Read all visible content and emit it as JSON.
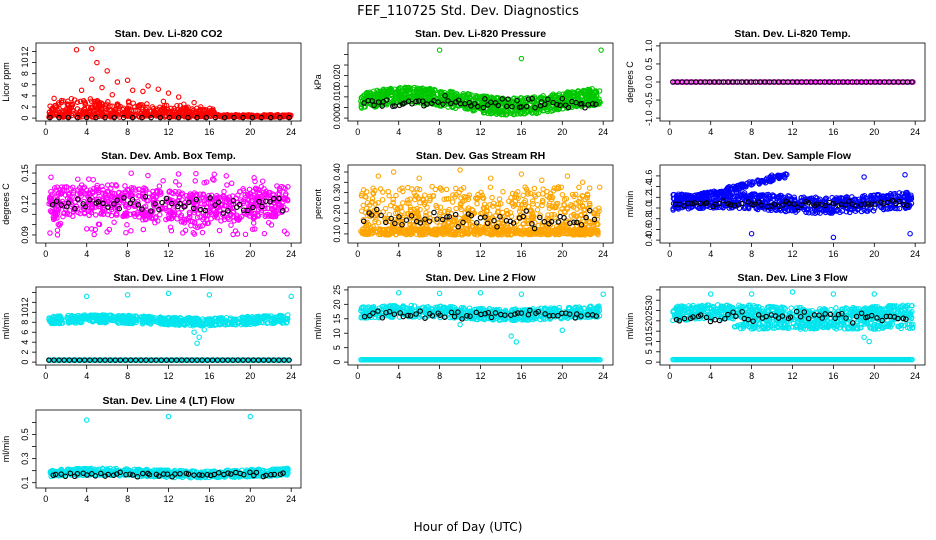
{
  "figure": {
    "title": "FEF_110725  Std. Dev. Diagnostics",
    "xlabel": "Hour of Day (UTC)"
  },
  "chart_data": [
    {
      "id": "co2",
      "type": "scatter",
      "title": "Stan. Dev. Li-820 CO2",
      "ylabel": "Licor ppm",
      "xlim": [
        0,
        24
      ],
      "ylim": [
        0,
        13
      ],
      "xticks": [
        0,
        4,
        8,
        12,
        16,
        20,
        24
      ],
      "yticks": [
        0,
        2,
        4,
        6,
        8,
        10,
        12
      ],
      "ytick_labels": [
        "0",
        "2",
        "4",
        "6",
        "8",
        "10",
        "12"
      ],
      "color": "#ff0000",
      "series": [
        {
          "role": "cloud",
          "kind": "decay",
          "base": 0.15,
          "spread": 2.0,
          "x_range": [
            0.3,
            16.5
          ],
          "n": 480
        },
        {
          "role": "cloud",
          "kind": "flat",
          "base": 0.2,
          "spread": 0.4,
          "x_range": [
            16.5,
            24
          ],
          "n": 160
        },
        {
          "role": "outliers",
          "points": [
            [
              4.5,
              12.5
            ],
            [
              3,
              12.3
            ],
            [
              6,
              8.5
            ],
            [
              5,
              10
            ],
            [
              4.5,
              7
            ],
            [
              7,
              6.5
            ],
            [
              8,
              6.8
            ],
            [
              5.5,
              5.5
            ],
            [
              10,
              5.8
            ],
            [
              11,
              5.2
            ],
            [
              9.5,
              4.8
            ],
            [
              12,
              4.5
            ],
            [
              13,
              3.8
            ],
            [
              6.5,
              4.2
            ],
            [
              3.5,
              5
            ],
            [
              2.5,
              3.5
            ],
            [
              8.5,
              5
            ],
            [
              11.5,
              3
            ],
            [
              13.5,
              2.5
            ],
            [
              14.5,
              2.8
            ]
          ]
        },
        {
          "role": "baseline",
          "color": "#000000",
          "y": 0.1,
          "step": 0.9
        }
      ]
    },
    {
      "id": "pressure",
      "type": "scatter",
      "title": "Stan. Dev. Li-820 Pressure",
      "ylabel": "kPa",
      "xlim": [
        0,
        24
      ],
      "ylim": [
        0,
        0.034
      ],
      "xticks": [
        0,
        4,
        8,
        12,
        16,
        20,
        24
      ],
      "yticks": [
        0,
        0.005,
        0.01,
        0.015,
        0.02,
        0.025,
        0.03
      ],
      "ytick_labels": [
        "0.000",
        "",
        "0.010",
        "",
        "0.020",
        "",
        ""
      ],
      "color": "#00c800",
      "series": [
        {
          "role": "band",
          "lower": 0.004,
          "upper": 0.012,
          "wave": 0.0025,
          "n": 900
        },
        {
          "role": "outliers",
          "points": [
            [
              8,
              0.032
            ],
            [
              16,
              0.028
            ],
            [
              23.8,
              0.032
            ]
          ]
        },
        {
          "role": "black",
          "color": "#000000",
          "center": 0.007,
          "spread": 0.006,
          "n": 70
        }
      ]
    },
    {
      "id": "temp",
      "type": "scatter",
      "title": "Stan. Dev. Li-820 Temp.",
      "ylabel": "degrees C",
      "xlim": [
        0,
        24
      ],
      "ylim": [
        -1,
        1
      ],
      "xticks": [
        0,
        4,
        8,
        12,
        16,
        20,
        24
      ],
      "yticks": [
        -1,
        -0.5,
        0,
        0.5,
        1
      ],
      "ytick_labels": [
        "-1.0",
        "-0.5",
        "0.0",
        "0.5",
        "1.0"
      ],
      "color": "#ff00ff",
      "series": [
        {
          "role": "line",
          "y": 0.0,
          "x_range": [
            0.3,
            23.8
          ],
          "n": 120
        },
        {
          "role": "black",
          "color": "#000000",
          "y": 0.0,
          "step": 0.45
        }
      ]
    },
    {
      "id": "ambtemp",
      "type": "scatter",
      "title": "Stan. Dev. Amb. Box Temp.",
      "ylabel": "degrees C",
      "xlim": [
        0,
        24
      ],
      "ylim": [
        0.085,
        0.155
      ],
      "xticks": [
        0,
        4,
        8,
        12,
        16,
        20,
        24
      ],
      "yticks": [
        0.09,
        0.1,
        0.11,
        0.12,
        0.13,
        0.14,
        0.15
      ],
      "ytick_labels": [
        "0.09",
        "",
        "",
        "0.12",
        "",
        "",
        "0.15"
      ],
      "color": "#ff00ff",
      "series": [
        {
          "role": "band",
          "lower": 0.105,
          "upper": 0.135,
          "wave": 0.004,
          "n": 650
        },
        {
          "role": "scatter_wide",
          "lower": 0.09,
          "upper": 0.15,
          "n": 120
        },
        {
          "role": "black",
          "color": "#000000",
          "center": 0.12,
          "spread": 0.02,
          "n": 55
        }
      ]
    },
    {
      "id": "rh",
      "type": "scatter",
      "title": "Stan. Dev. Gas Stream RH",
      "ylabel": "percent",
      "xlim": [
        0,
        24
      ],
      "ylim": [
        0.07,
        0.42
      ],
      "xticks": [
        0,
        4,
        8,
        12,
        16,
        20,
        24
      ],
      "yticks": [
        0.1,
        0.15,
        0.2,
        0.25,
        0.3,
        0.35,
        0.4
      ],
      "ytick_labels": [
        "0.10",
        "",
        "0.20",
        "",
        "0.30",
        "",
        "0.40"
      ],
      "color": "#ffa500",
      "series": [
        {
          "role": "band",
          "lower": 0.095,
          "upper": 0.125,
          "wave": 0.0,
          "n": 500
        },
        {
          "role": "scatter_wide",
          "lower": 0.13,
          "upper": 0.33,
          "n": 520
        },
        {
          "role": "outliers",
          "points": [
            [
              2,
              0.38
            ],
            [
              3.5,
              0.4
            ],
            [
              6,
              0.37
            ],
            [
              10,
              0.41
            ],
            [
              13,
              0.37
            ],
            [
              16,
              0.39
            ],
            [
              18,
              0.36
            ],
            [
              20.5,
              0.38
            ],
            [
              22,
              0.35
            ]
          ]
        },
        {
          "role": "black",
          "color": "#000000",
          "center": 0.17,
          "spread": 0.08,
          "n": 55
        }
      ]
    },
    {
      "id": "sampleflow",
      "type": "scatter",
      "title": "Stan. Dev. Sample Flow",
      "ylabel": "ml/min",
      "xlim": [
        0,
        24
      ],
      "ylim": [
        0.4,
        1.75
      ],
      "xticks": [
        0,
        4,
        8,
        12,
        16,
        20,
        24
      ],
      "yticks": [
        0.4,
        0.6,
        0.8,
        1.0,
        1.2,
        1.4,
        1.6
      ],
      "ytick_labels": [
        "0.4",
        "0.6",
        "0.8",
        "1.0",
        "1.2",
        "1.4",
        "1.6"
      ],
      "color": "#0000ff",
      "series": [
        {
          "role": "band",
          "lower": 0.95,
          "upper": 1.25,
          "wave": 0.05,
          "n": 700
        },
        {
          "role": "trend",
          "start": [
            0.5,
            1.1
          ],
          "end": [
            11.5,
            1.62
          ],
          "spread": 0.08,
          "n": 160
        },
        {
          "role": "outliers",
          "points": [
            [
              8,
              0.52
            ],
            [
              16,
              0.45
            ],
            [
              23.5,
              0.52
            ],
            [
              19,
              1.58
            ],
            [
              23,
              1.62
            ]
          ]
        },
        {
          "role": "black",
          "color": "#000000",
          "center": 1.08,
          "spread": 0.12,
          "n": 60
        }
      ]
    },
    {
      "id": "line1",
      "type": "scatter",
      "title": "Stan. Dev. Line 1 Flow",
      "ylabel": "ml/min",
      "xlim": [
        0,
        24
      ],
      "ylim": [
        0,
        14.5
      ],
      "xticks": [
        0,
        4,
        8,
        12,
        16,
        20,
        24
      ],
      "yticks": [
        0,
        2,
        4,
        6,
        8,
        10,
        12,
        14
      ],
      "ytick_labels": [
        "0",
        "2",
        "4",
        "6",
        "8",
        "10",
        "12",
        ""
      ],
      "color": "#00e5ee",
      "series": [
        {
          "role": "band",
          "lower": 7.6,
          "upper": 9.2,
          "wave": 0.3,
          "n": 650
        },
        {
          "role": "outliers",
          "points": [
            [
              4,
              13.2
            ],
            [
              8,
              13.5
            ],
            [
              12,
              13.8
            ],
            [
              16,
              13.5
            ],
            [
              24,
              13.2
            ],
            [
              14.5,
              6
            ],
            [
              15,
              5
            ],
            [
              14.8,
              3.8
            ],
            [
              15.5,
              6.5
            ]
          ]
        },
        {
          "role": "baseline_cyan",
          "y": 0.4,
          "n": 200
        },
        {
          "role": "black",
          "color": "#000000",
          "y": 0.4,
          "step": 0.5
        }
      ]
    },
    {
      "id": "line2",
      "type": "scatter",
      "title": "Stan. Dev. Line 2 Flow",
      "ylabel": "ml/min",
      "xlim": [
        0,
        24
      ],
      "ylim": [
        0,
        25
      ],
      "xticks": [
        0,
        4,
        8,
        12,
        16,
        20,
        24
      ],
      "yticks": [
        0,
        5,
        10,
        15,
        20,
        25
      ],
      "ytick_labels": [
        "0",
        "5",
        "10",
        "15",
        "20",
        "25"
      ],
      "color": "#00e5ee",
      "series": [
        {
          "role": "band",
          "lower": 15,
          "upper": 19,
          "wave": 0.6,
          "n": 650
        },
        {
          "role": "outliers",
          "points": [
            [
              4,
              24
            ],
            [
              8,
              23.8
            ],
            [
              12,
              24
            ],
            [
              16,
              23.5
            ],
            [
              24,
              23.5
            ],
            [
              15,
              9
            ],
            [
              15.5,
              7
            ],
            [
              20,
              11
            ],
            [
              10,
              13
            ]
          ]
        },
        {
          "role": "baseline_cyan",
          "y": 0.8,
          "n": 200
        },
        {
          "role": "black",
          "color": "#000000",
          "center": 16.5,
          "spread": 3,
          "n": 55
        }
      ]
    },
    {
      "id": "line3",
      "type": "scatter",
      "title": "Stan. Dev. Line 3 Flow",
      "ylabel": "ml/min",
      "xlim": [
        0,
        24
      ],
      "ylim": [
        0,
        35
      ],
      "xticks": [
        0,
        4,
        8,
        12,
        16,
        20,
        24
      ],
      "yticks": [
        0,
        5,
        10,
        15,
        20,
        25,
        30,
        35
      ],
      "ytick_labels": [
        "0",
        "5",
        "10",
        "15",
        "20",
        "25",
        "30",
        ""
      ],
      "color": "#00e5ee",
      "series": [
        {
          "role": "band",
          "lower": 20,
          "upper": 27,
          "wave": 0.8,
          "n": 650
        },
        {
          "role": "band2",
          "lower": 16,
          "upper": 19,
          "x_range": [
            6,
            24
          ],
          "n": 200
        },
        {
          "role": "outliers",
          "points": [
            [
              4,
              33
            ],
            [
              8,
              33
            ],
            [
              12,
              34
            ],
            [
              16,
              33
            ],
            [
              20,
              33
            ],
            [
              19,
              12
            ],
            [
              19.5,
              10
            ]
          ]
        },
        {
          "role": "baseline_cyan",
          "y": 1.2,
          "n": 200
        },
        {
          "role": "black",
          "color": "#000000",
          "center": 22,
          "spread": 6,
          "n": 55
        }
      ]
    },
    {
      "id": "line4",
      "type": "scatter",
      "title": "Stan. Dev. Line 4 (LT) Flow",
      "ylabel": "ml/min",
      "xlim": [
        0,
        24
      ],
      "ylim": [
        0.08,
        0.68
      ],
      "xticks": [
        0,
        4,
        8,
        12,
        16,
        20,
        24
      ],
      "yticks": [
        0.1,
        0.2,
        0.3,
        0.4,
        0.5,
        0.6
      ],
      "ytick_labels": [
        "0.1",
        "",
        "0.3",
        "",
        "0.5",
        ""
      ],
      "color": "#00e5ee",
      "series": [
        {
          "role": "band",
          "lower": 0.15,
          "upper": 0.21,
          "wave": 0.01,
          "n": 650
        },
        {
          "role": "outliers",
          "points": [
            [
              4,
              0.62
            ],
            [
              12,
              0.65
            ],
            [
              20,
              0.65
            ]
          ]
        },
        {
          "role": "black",
          "color": "#000000",
          "center": 0.17,
          "spread": 0.04,
          "n": 55
        }
      ]
    }
  ]
}
